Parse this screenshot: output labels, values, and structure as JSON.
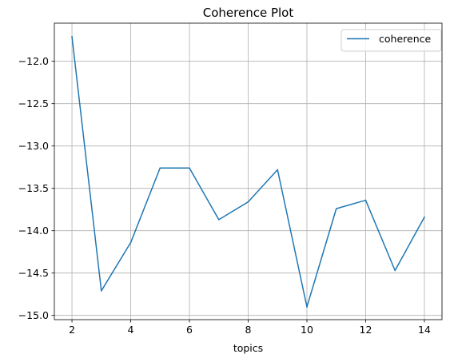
{
  "chart_data": {
    "type": "line",
    "title": "Coherence Plot",
    "xlabel": "topics",
    "ylabel": "",
    "xlim": [
      1.4,
      14.6
    ],
    "ylim": [
      -15.05,
      -11.55
    ],
    "xticks": [
      2,
      4,
      6,
      8,
      10,
      12,
      14
    ],
    "xtick_labels": [
      "2",
      "4",
      "6",
      "8",
      "10",
      "12",
      "14"
    ],
    "yticks": [
      -12.0,
      -12.5,
      -13.0,
      -13.5,
      -14.0,
      -14.5,
      -15.0
    ],
    "ytick_labels": [
      "−12.0",
      "−12.5",
      "−13.0",
      "−13.5",
      "−14.0",
      "−14.5",
      "−15.0"
    ],
    "grid": true,
    "legend_position": "top-right",
    "series": [
      {
        "name": "coherence",
        "color": "#1f77b4",
        "x": [
          2,
          3,
          4,
          5,
          6,
          7,
          8,
          9,
          10,
          11,
          12,
          13,
          14
        ],
        "y": [
          -11.71,
          -14.71,
          -14.14,
          -13.26,
          -13.26,
          -13.87,
          -13.66,
          -13.28,
          -14.9,
          -13.74,
          -13.64,
          -14.47,
          -13.84
        ]
      }
    ]
  }
}
